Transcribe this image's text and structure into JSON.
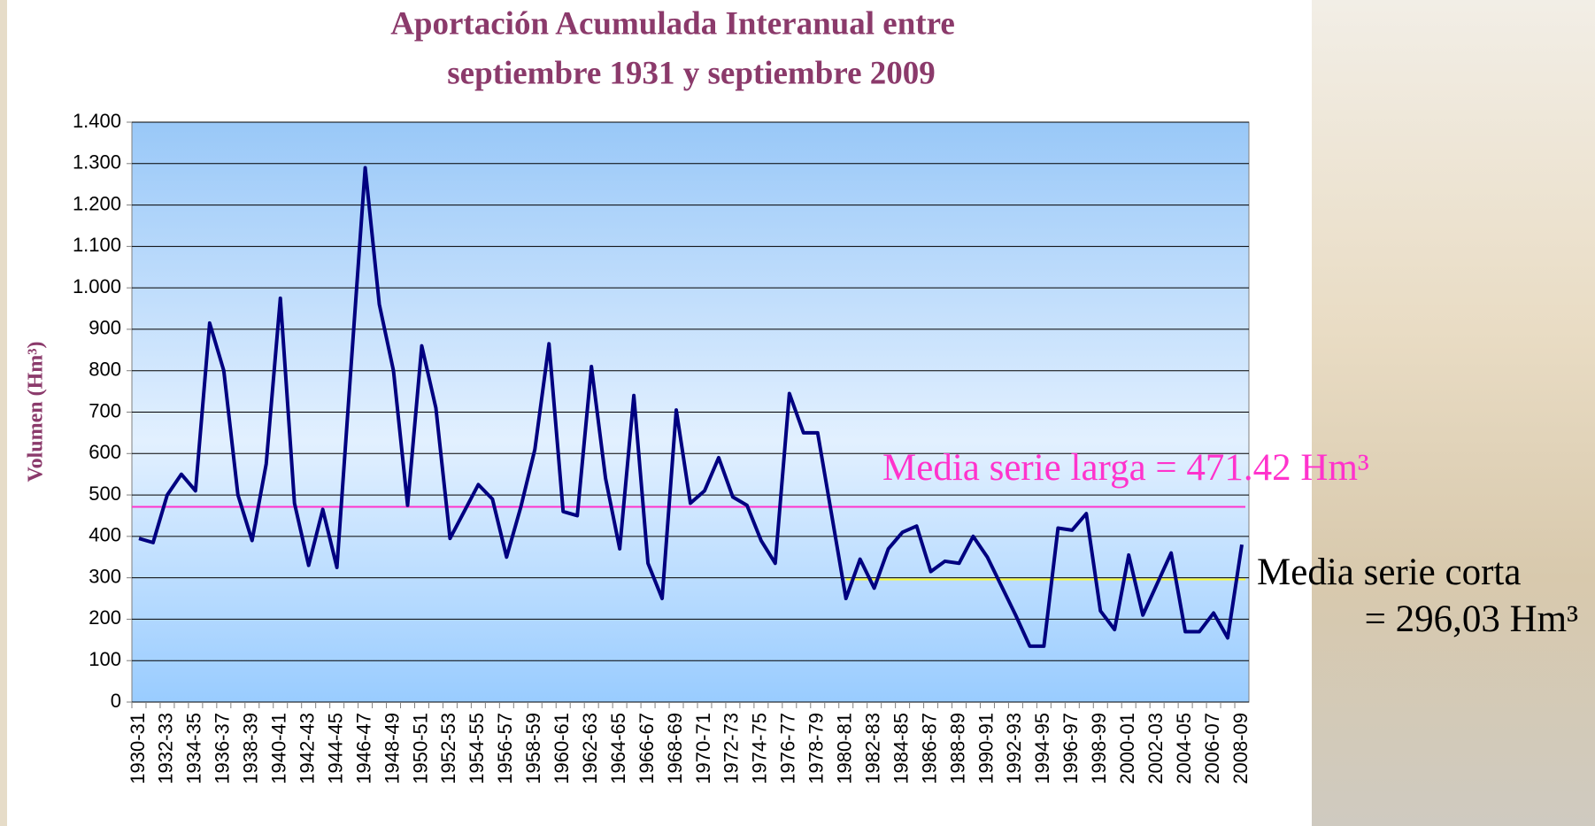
{
  "chart_data": {
    "type": "line",
    "title": [
      "Aportación Acumulada Interanual entre",
      "septiembre 1931 y septiembre 2009"
    ],
    "ylabel": "Volumen (Hm³)",
    "categories": [
      "1930-31",
      null,
      "1932-33",
      null,
      "1934-35",
      null,
      "1936-37",
      null,
      "1938-39",
      null,
      "1940-41",
      null,
      "1942-43",
      null,
      "1944-45",
      null,
      "1946-47",
      null,
      "1948-49",
      null,
      "1950-51",
      null,
      "1952-53",
      null,
      "1954-55",
      null,
      "1956-57",
      null,
      "1958-59",
      null,
      "1960-61",
      null,
      "1962-63",
      null,
      "1964-65",
      null,
      "1966-67",
      null,
      "1968-69",
      null,
      "1970-71",
      null,
      "1972-73",
      null,
      "1974-75",
      null,
      "1976-77",
      null,
      "1978-79",
      null,
      "1980-81",
      null,
      "1982-83",
      null,
      "1984-85",
      null,
      "1986-87",
      null,
      "1988-89",
      null,
      "1990-91",
      null,
      "1992-93",
      null,
      "1994-95",
      null,
      "1996-97",
      null,
      "1998-99",
      null,
      "2000-01",
      null,
      "2002-03",
      null,
      "2004-05",
      null,
      "2006-07",
      null,
      "2008-09"
    ],
    "series": [
      {
        "color": "#000080",
        "values": [
          395,
          385,
          500,
          550,
          510,
          915,
          800,
          500,
          390,
          575,
          975,
          480,
          330,
          465,
          325,
          810,
          1290,
          960,
          800,
          475,
          860,
          710,
          395,
          460,
          525,
          490,
          350,
          470,
          610,
          865,
          460,
          450,
          810,
          540,
          370,
          740,
          335,
          250,
          705,
          480,
          510,
          590,
          495,
          475,
          390,
          335,
          745,
          650,
          650,
          450,
          250,
          345,
          275,
          370,
          410,
          425,
          315,
          340,
          335,
          400,
          350,
          280,
          210,
          135,
          135,
          420,
          415,
          455,
          220,
          175,
          355,
          210,
          285,
          360,
          170,
          170,
          215,
          155,
          380
        ]
      }
    ],
    "ylim": [
      0,
      1400
    ],
    "yticks": [
      0,
      100,
      200,
      300,
      400,
      500,
      600,
      700,
      800,
      900,
      {
        "value": 1000,
        "label": "1.000"
      },
      {
        "value": 1100,
        "label": "1.100"
      },
      {
        "value": 1200,
        "label": "1.200"
      },
      {
        "value": 1300,
        "label": "1.300"
      },
      {
        "value": 1400,
        "label": "1.400"
      }
    ],
    "grid": true,
    "reference_lines": [
      {
        "value": 471.42,
        "color": "#ff33cc",
        "label": [
          "Media serie larga = 471.42 Hm³"
        ]
      },
      {
        "value": 296.03,
        "color": "#ffff33",
        "from": "1980-81",
        "label": [
          "Media serie corta",
          "= 296,03 Hm³"
        ]
      }
    ]
  }
}
